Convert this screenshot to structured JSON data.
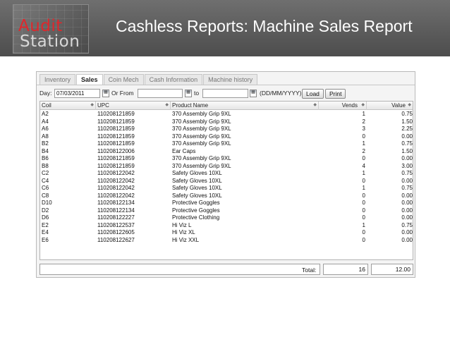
{
  "header": {
    "logo_line1": "Audit",
    "logo_line2": "Station",
    "title": "Cashless Reports: Machine Sales Report"
  },
  "tabs": [
    {
      "label": "Inventory"
    },
    {
      "label": "Sales",
      "active": true
    },
    {
      "label": "Coin Mech"
    },
    {
      "label": "Cash Information"
    },
    {
      "label": "Machine history"
    }
  ],
  "filters": {
    "day_label": "Day:",
    "day_value": "07/03/2011",
    "or_from_label": "Or From",
    "from_value": "",
    "to_label": "to",
    "to_value": "",
    "format_hint": "(DD/MM/YYYY)",
    "load_label": "Load",
    "print_label": "Print"
  },
  "table": {
    "columns": [
      "Coil",
      "UPC",
      "Product Name",
      "Vends",
      "Value"
    ],
    "rows": [
      {
        "coil": "A2",
        "upc": "110208121859",
        "name": "370 Assembly Grip 9XL",
        "vends": "1",
        "value": "0.75"
      },
      {
        "coil": "A4",
        "upc": "110208121859",
        "name": "370 Assembly Grip 9XL",
        "vends": "2",
        "value": "1.50"
      },
      {
        "coil": "A6",
        "upc": "110208121859",
        "name": "370 Assembly Grip 9XL",
        "vends": "3",
        "value": "2.25"
      },
      {
        "coil": "A8",
        "upc": "110208121859",
        "name": "370 Assembly Grip 9XL",
        "vends": "0",
        "value": "0.00"
      },
      {
        "coil": "B2",
        "upc": "110208121859",
        "name": "370 Assembly Grip 9XL",
        "vends": "1",
        "value": "0.75"
      },
      {
        "coil": "B4",
        "upc": "110208122006",
        "name": "Ear Caps",
        "vends": "2",
        "value": "1.50"
      },
      {
        "coil": "B6",
        "upc": "110208121859",
        "name": "370 Assembly Grip 9XL",
        "vends": "0",
        "value": "0.00"
      },
      {
        "coil": "B8",
        "upc": "110208121859",
        "name": "370 Assembly Grip 9XL",
        "vends": "4",
        "value": "3.00"
      },
      {
        "coil": "C2",
        "upc": "110208122042",
        "name": "Safety Gloves 10XL",
        "vends": "1",
        "value": "0.75"
      },
      {
        "coil": "C4",
        "upc": "110208122042",
        "name": "Safety Gloves 10XL",
        "vends": "0",
        "value": "0.00"
      },
      {
        "coil": "C6",
        "upc": "110208122042",
        "name": "Safety Gloves 10XL",
        "vends": "1",
        "value": "0.75"
      },
      {
        "coil": "C8",
        "upc": "110208122042",
        "name": "Safety Gloves 10XL",
        "vends": "0",
        "value": "0.00"
      },
      {
        "coil": "D10",
        "upc": "110208122134",
        "name": "Protective Goggles",
        "vends": "0",
        "value": "0.00"
      },
      {
        "coil": "D2",
        "upc": "110208122134",
        "name": "Protective Goggles",
        "vends": "0",
        "value": "0.00"
      },
      {
        "coil": "D6",
        "upc": "110208122227",
        "name": "Protective Clothing",
        "vends": "0",
        "value": "0.00"
      },
      {
        "coil": "E2",
        "upc": "110208122537",
        "name": "Hi Viz L",
        "vends": "1",
        "value": "0.75"
      },
      {
        "coil": "E4",
        "upc": "110208122605",
        "name": "Hi Viz XL",
        "vends": "0",
        "value": "0.00"
      },
      {
        "coil": "E6",
        "upc": "110208122627",
        "name": "Hi Viz XXL",
        "vends": "0",
        "value": "0.00"
      }
    ]
  },
  "totals": {
    "label": "Total:",
    "vends": "16",
    "value": "12.00"
  },
  "icons": {
    "calendar": "calendar-icon",
    "sort": "sort-arrows-icon"
  },
  "colors": {
    "banner": "#5a5a5a",
    "logo_red": "#e0262b"
  }
}
